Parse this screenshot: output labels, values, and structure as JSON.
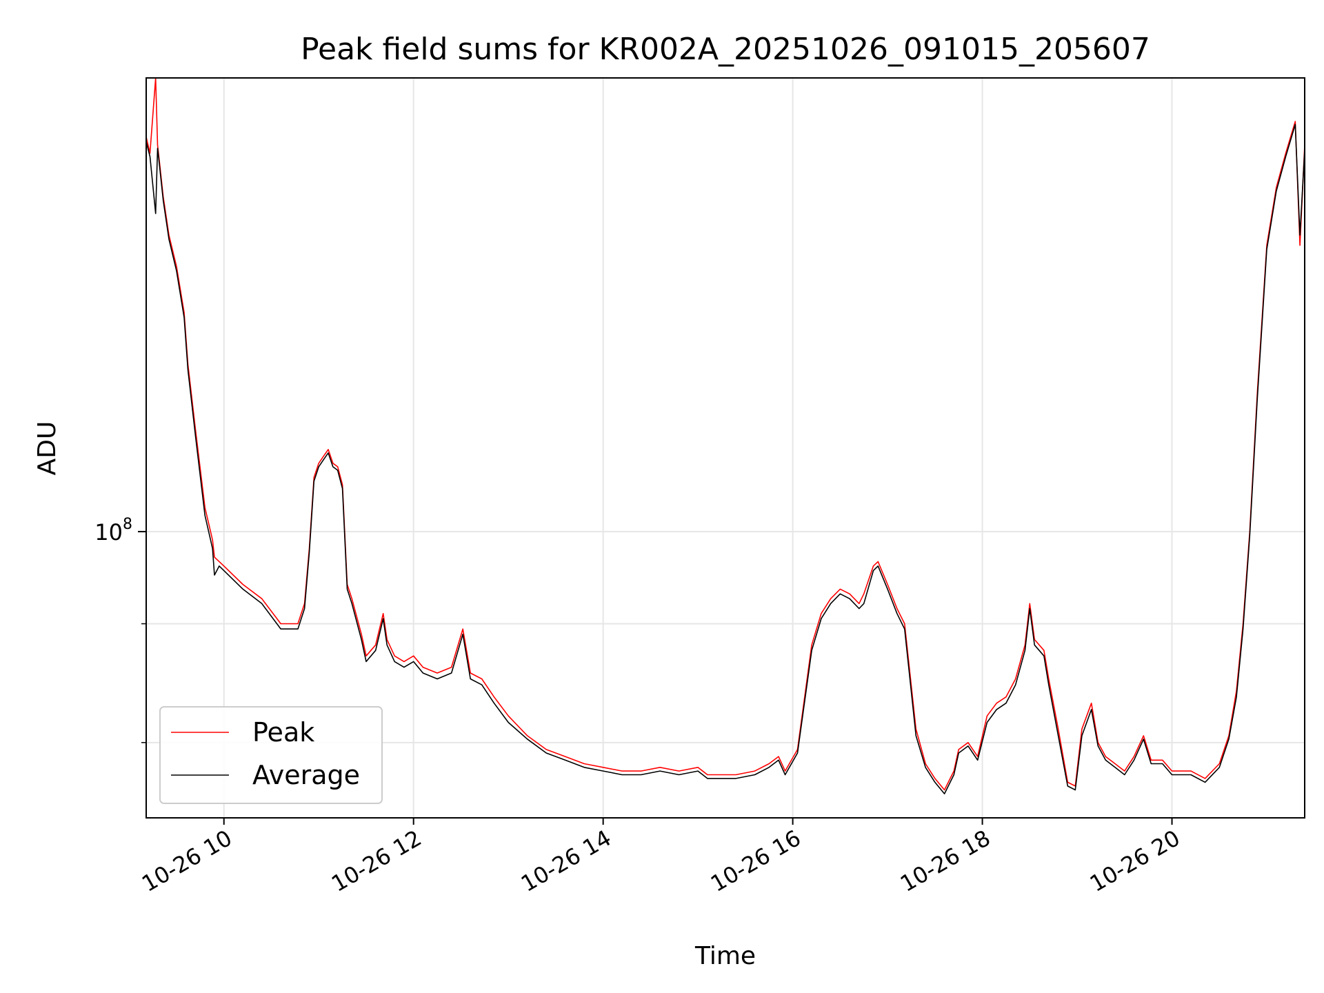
{
  "chart_data": {
    "type": "line",
    "title": "Peak field sums for KR002A_20251026_091015_205607",
    "xlabel": "Time",
    "ylabel": "ADU",
    "x_ticks": [
      "10-26 10",
      "10-26 12",
      "10-26 14",
      "10-26 16",
      "10-26 18",
      "10-26 20"
    ],
    "x_tick_hours": [
      10,
      12,
      14,
      16,
      18,
      20
    ],
    "xlim_hours": [
      9.18,
      21.4
    ],
    "y_scale": "log",
    "y_major_tick": {
      "value": 100000000,
      "base": "10",
      "exponent": "8"
    },
    "y_minor_ticks": [
      60000000,
      80000000
    ],
    "ylim": [
      50000000,
      300000000
    ],
    "grid": true,
    "legend_position": "lower-left",
    "x_hours": [
      9.18,
      9.22,
      9.28,
      9.3,
      9.32,
      9.36,
      9.42,
      9.5,
      9.58,
      9.62,
      9.7,
      9.8,
      9.88,
      9.9,
      9.95,
      10.0,
      10.2,
      10.4,
      10.6,
      10.78,
      10.85,
      10.9,
      10.95,
      11.0,
      11.05,
      11.1,
      11.15,
      11.2,
      11.25,
      11.3,
      11.35,
      11.45,
      11.5,
      11.6,
      11.68,
      11.72,
      11.8,
      11.9,
      12.0,
      12.1,
      12.25,
      12.4,
      12.52,
      12.6,
      12.72,
      12.85,
      13.0,
      13.2,
      13.4,
      13.6,
      13.8,
      14.0,
      14.2,
      14.4,
      14.6,
      14.8,
      15.0,
      15.1,
      15.2,
      15.4,
      15.6,
      15.75,
      15.85,
      15.92,
      16.05,
      16.2,
      16.3,
      16.4,
      16.5,
      16.6,
      16.7,
      16.75,
      16.85,
      16.9,
      17.0,
      17.1,
      17.18,
      17.3,
      17.4,
      17.5,
      17.6,
      17.7,
      17.75,
      17.85,
      17.95,
      18.05,
      18.15,
      18.25,
      18.35,
      18.45,
      18.5,
      18.55,
      18.65,
      18.7,
      18.8,
      18.9,
      18.98,
      19.05,
      19.15,
      19.22,
      19.3,
      19.4,
      19.5,
      19.6,
      19.7,
      19.78,
      19.9,
      20.0,
      20.1,
      20.2,
      20.35,
      20.5,
      20.6,
      20.68,
      20.75,
      20.82,
      20.9,
      21.0,
      21.1,
      21.2,
      21.3,
      21.35,
      21.4
    ],
    "series": [
      {
        "name": "Peak",
        "color": "#ff0000",
        "values": [
          260000000,
          250000000,
          300000000,
          255000000,
          245000000,
          225000000,
          205000000,
          190000000,
          170000000,
          150000000,
          128000000,
          106000000,
          98000000,
          94000000,
          93000000,
          92000000,
          88000000,
          85000000,
          80000000,
          80000000,
          84000000,
          96000000,
          114000000,
          118000000,
          120000000,
          122000000,
          118000000,
          117000000,
          112000000,
          88000000,
          85000000,
          78000000,
          74000000,
          76000000,
          82000000,
          77000000,
          74000000,
          73000000,
          74000000,
          72000000,
          71000000,
          72000000,
          79000000,
          71000000,
          70000000,
          67000000,
          64000000,
          61000000,
          59000000,
          58000000,
          57000000,
          56500000,
          56000000,
          56000000,
          56500000,
          56000000,
          56500000,
          55500000,
          55500000,
          55500000,
          56000000,
          57000000,
          58000000,
          56000000,
          59000000,
          76000000,
          82000000,
          85000000,
          87000000,
          86000000,
          84000000,
          86000000,
          92000000,
          93000000,
          88000000,
          83000000,
          80000000,
          62000000,
          57000000,
          55000000,
          53500000,
          56000000,
          59000000,
          60000000,
          58000000,
          64000000,
          66000000,
          67000000,
          70000000,
          76000000,
          84000000,
          77000000,
          75000000,
          70000000,
          62000000,
          54500000,
          54000000,
          62000000,
          66000000,
          60000000,
          58000000,
          57000000,
          56000000,
          58000000,
          61000000,
          57500000,
          57500000,
          56000000,
          56000000,
          56000000,
          55000000,
          57000000,
          61000000,
          68000000,
          80000000,
          100000000,
          140000000,
          200000000,
          230000000,
          250000000,
          270000000,
          200000000,
          255000000
        ]
      },
      {
        "name": "Average",
        "color": "#000000",
        "values": [
          257000000,
          248000000,
          216000000,
          253000000,
          243000000,
          223000000,
          203000000,
          188000000,
          168000000,
          148000000,
          126000000,
          104000000,
          96000000,
          90000000,
          92000000,
          91000000,
          87000000,
          84000000,
          79000000,
          79000000,
          83000000,
          95000000,
          113000000,
          117000000,
          119000000,
          121000000,
          117000000,
          116000000,
          111000000,
          87000000,
          84000000,
          77000000,
          73000000,
          75000000,
          81000000,
          76000000,
          73000000,
          72000000,
          73000000,
          71000000,
          70000000,
          71000000,
          78000000,
          70000000,
          69000000,
          66000000,
          63000000,
          60500000,
          58500000,
          57500000,
          56500000,
          56000000,
          55500000,
          55500000,
          56000000,
          55500000,
          56000000,
          55000000,
          55000000,
          55000000,
          55500000,
          56500000,
          57500000,
          55500000,
          58500000,
          75000000,
          81000000,
          84000000,
          86000000,
          85000000,
          83000000,
          84000000,
          91000000,
          92000000,
          87000000,
          82000000,
          79000000,
          61000000,
          56500000,
          54500000,
          53000000,
          55500000,
          58500000,
          59500000,
          57500000,
          63000000,
          65000000,
          66000000,
          69000000,
          75000000,
          83000000,
          76000000,
          74000000,
          69000000,
          61000000,
          54000000,
          53500000,
          61000000,
          65000000,
          59500000,
          57500000,
          56500000,
          55500000,
          57500000,
          60500000,
          57000000,
          57000000,
          55500000,
          55500000,
          55500000,
          54500000,
          56500000,
          60500000,
          67000000,
          79000000,
          99000000,
          138000000,
          198000000,
          228000000,
          248000000,
          268000000,
          205000000,
          252000000
        ]
      }
    ]
  }
}
